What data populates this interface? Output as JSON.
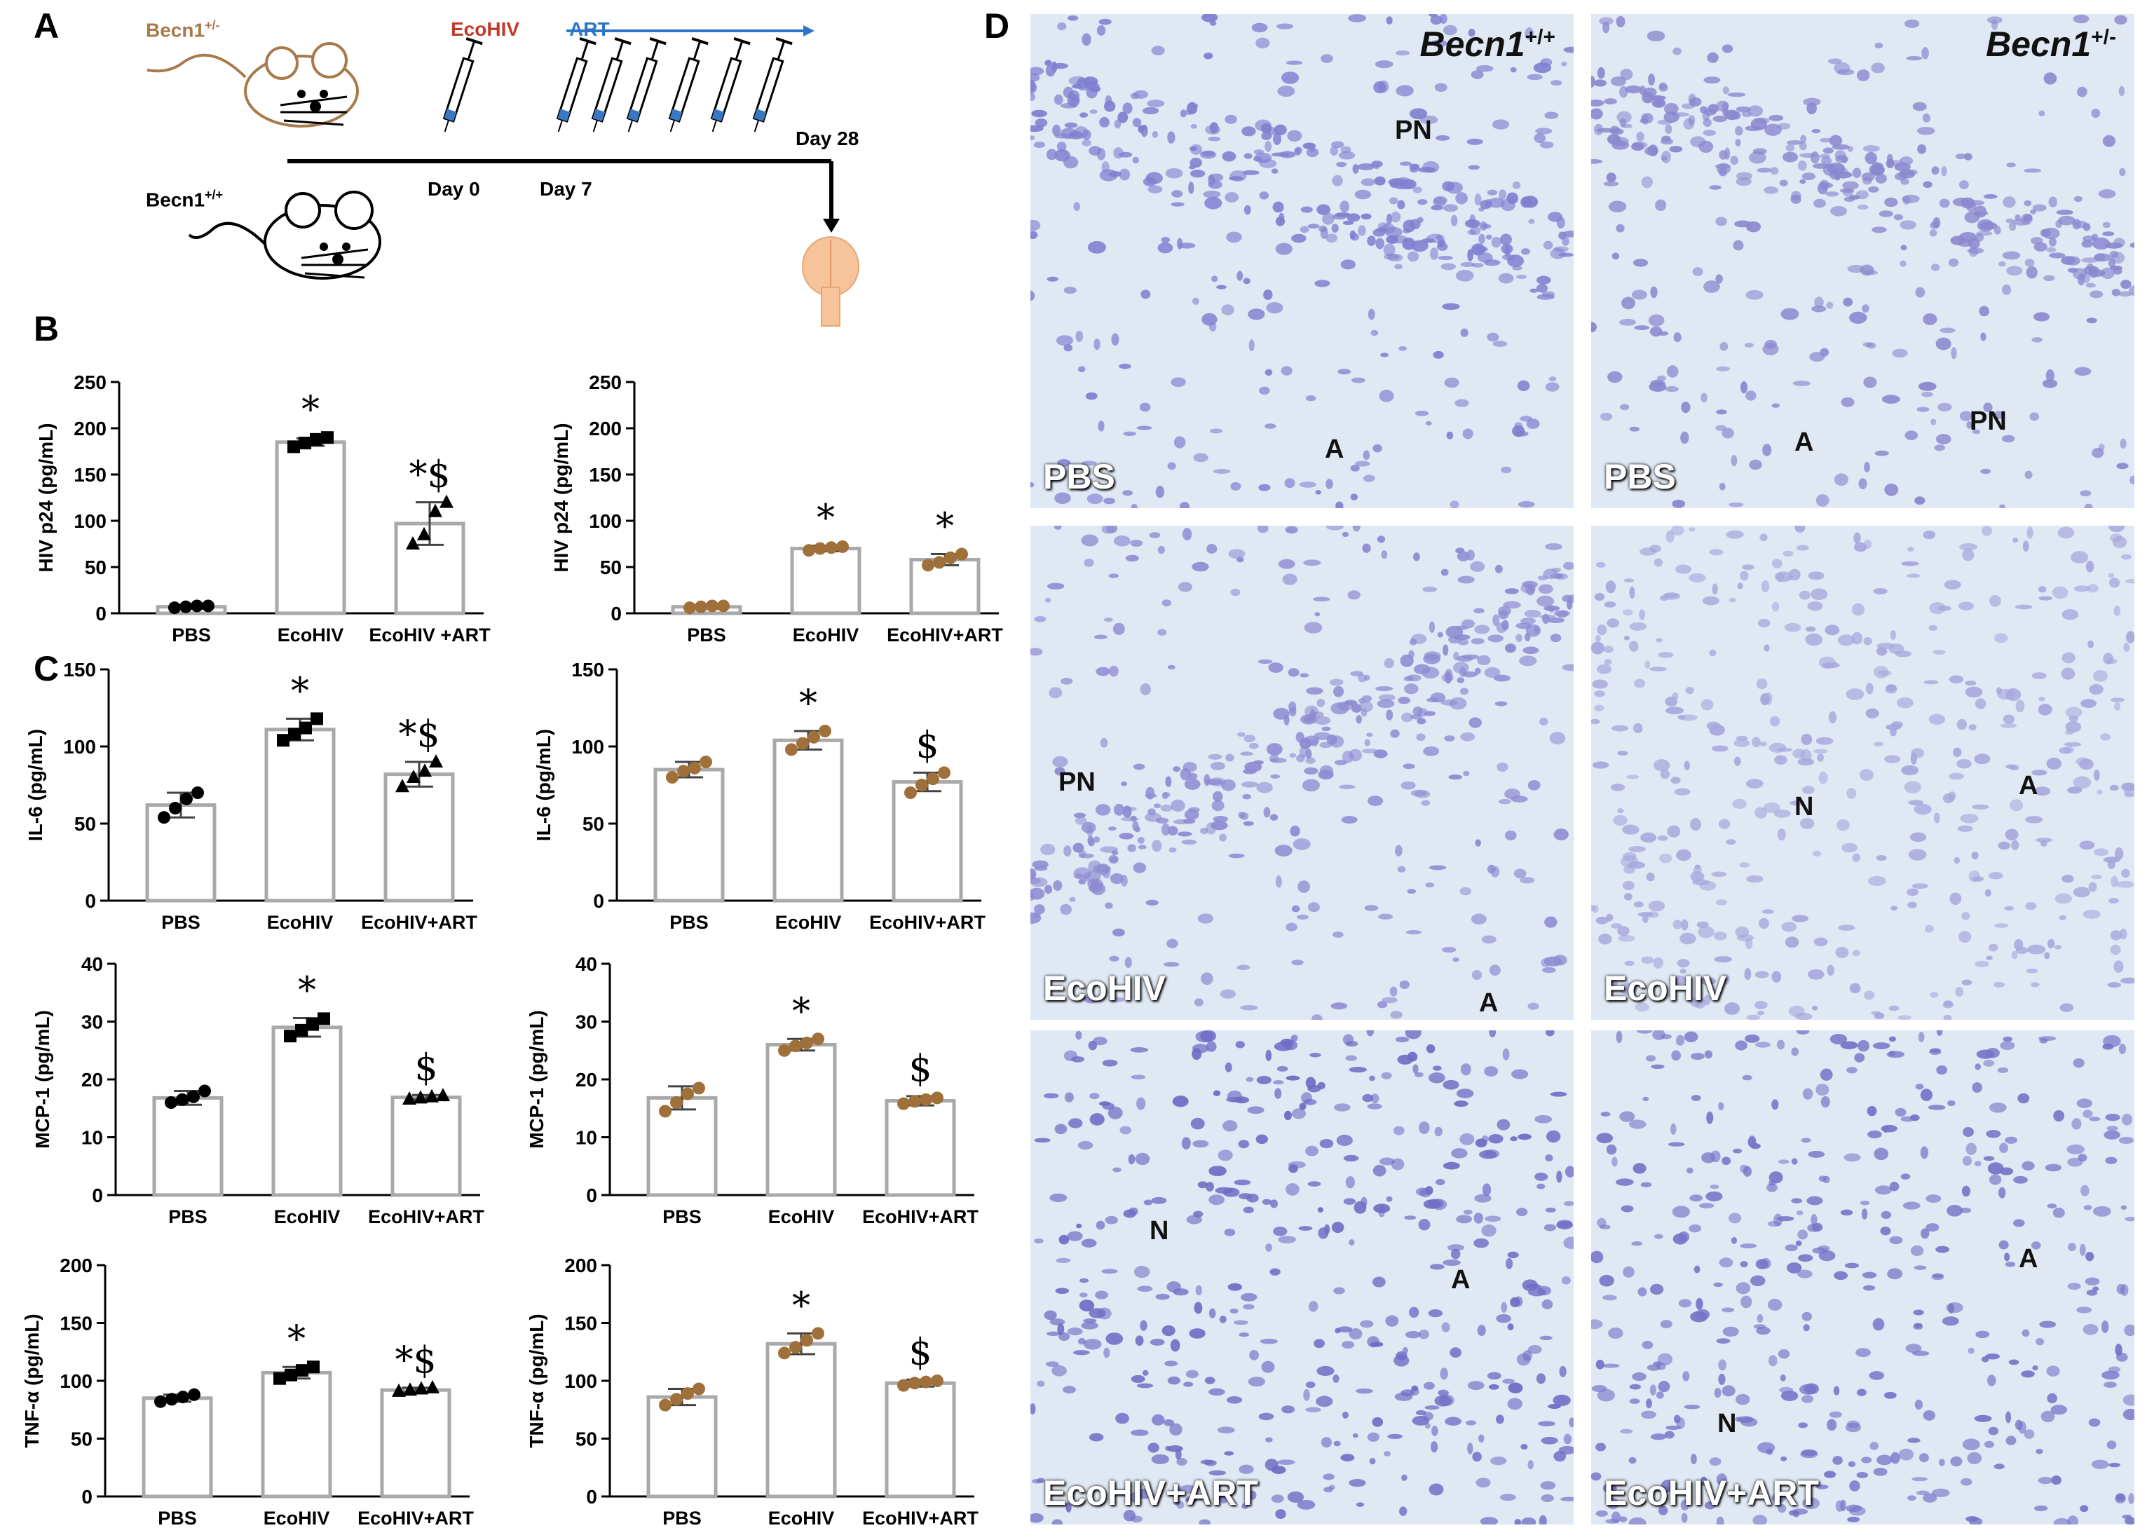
{
  "panel_labels": {
    "A": "A",
    "B": "B",
    "C": "C",
    "D": "D"
  },
  "timeline": {
    "mouse_het": "Becn1",
    "mouse_het_sup": "+/-",
    "mouse_wt": "Becn1",
    "mouse_wt_sup": "+/+",
    "ecohiv_label": "EcoHIV",
    "art_label": "ART",
    "day0": "Day 0",
    "day7": "Day 7",
    "day28": "Day 28",
    "colors": {
      "ecohiv": "#c0392b",
      "art": "#2e75c6",
      "het": "#a87a4a"
    }
  },
  "chart_data": [
    {
      "id": "p24_wt",
      "type": "bar",
      "categories": [
        "PBS",
        "EcoHIV",
        "EcoHIV +ART"
      ],
      "values": [
        7,
        185,
        97
      ],
      "errors": [
        2,
        4,
        23
      ],
      "points": [
        [
          6,
          7,
          8,
          8
        ],
        [
          180,
          184,
          188,
          190
        ],
        [
          75,
          85,
          110,
          120
        ]
      ],
      "marker": "mix",
      "color": "#000000",
      "ylabel": "HIV p24 (pg/mL)",
      "ylim": [
        0,
        250
      ],
      "ticks": [
        0,
        50,
        100,
        150,
        200,
        250
      ],
      "sig": [
        "",
        "*",
        "*$"
      ]
    },
    {
      "id": "p24_het",
      "type": "bar",
      "categories": [
        "PBS",
        "EcoHIV",
        "EcoHIV+ART"
      ],
      "values": [
        7,
        70,
        58
      ],
      "errors": [
        2,
        3,
        6
      ],
      "points": [
        [
          6,
          7,
          8,
          8
        ],
        [
          68,
          70,
          71,
          72
        ],
        [
          52,
          55,
          60,
          64
        ]
      ],
      "marker": "circle",
      "color": "#a0703a",
      "ylabel": "HIV p24 (pg/mL)",
      "ylim": [
        0,
        250
      ],
      "ticks": [
        0,
        50,
        100,
        150,
        200,
        250
      ],
      "sig": [
        "",
        "*",
        "*"
      ]
    },
    {
      "id": "il6_wt",
      "type": "bar",
      "categories": [
        "PBS",
        "EcoHIV",
        "EcoHIV+ART"
      ],
      "values": [
        62,
        111,
        82
      ],
      "errors": [
        8,
        7,
        8
      ],
      "points": [
        [
          54,
          60,
          66,
          70
        ],
        [
          104,
          108,
          112,
          118
        ],
        [
          74,
          80,
          84,
          90
        ]
      ],
      "marker": "mix",
      "color": "#000000",
      "ylabel": "IL-6 (pg/mL)",
      "ylim": [
        0,
        150
      ],
      "ticks": [
        0,
        50,
        100,
        150
      ],
      "sig": [
        "",
        "*",
        "*$"
      ]
    },
    {
      "id": "il6_het",
      "type": "bar",
      "categories": [
        "PBS",
        "EcoHIV",
        "EcoHIV+ART"
      ],
      "values": [
        85,
        104,
        77
      ],
      "errors": [
        5,
        6,
        6
      ],
      "points": [
        [
          80,
          84,
          86,
          90
        ],
        [
          98,
          102,
          106,
          110
        ],
        [
          70,
          75,
          79,
          83
        ]
      ],
      "marker": "circle",
      "color": "#a0703a",
      "ylabel": "IL-6 (pg/mL)",
      "ylim": [
        0,
        150
      ],
      "ticks": [
        0,
        50,
        100,
        150
      ],
      "sig": [
        "",
        "*",
        "$"
      ]
    },
    {
      "id": "mcp1_wt",
      "type": "bar",
      "categories": [
        "PBS",
        "EcoHIV",
        "EcoHIV+ART"
      ],
      "values": [
        16.8,
        29,
        16.9
      ],
      "errors": [
        1.2,
        1.6,
        0.4
      ],
      "points": [
        [
          16,
          16.5,
          17,
          18
        ],
        [
          27.5,
          28.5,
          29.5,
          30.5
        ],
        [
          16.6,
          16.8,
          17,
          17.2
        ]
      ],
      "marker": "mix",
      "color": "#000000",
      "ylabel": "MCP-1 (pg/mL)",
      "ylim": [
        0,
        40
      ],
      "ticks": [
        0,
        10,
        20,
        30,
        40
      ],
      "sig": [
        "",
        "*",
        "$"
      ]
    },
    {
      "id": "mcp1_het",
      "type": "bar",
      "categories": [
        "PBS",
        "EcoHIV",
        "EcoHIV+ART"
      ],
      "values": [
        16.8,
        26,
        16.3
      ],
      "errors": [
        2,
        1,
        0.8
      ],
      "points": [
        [
          14.5,
          16,
          17.5,
          18.5
        ],
        [
          25,
          25.8,
          26.3,
          27
        ],
        [
          15.8,
          16.2,
          16.5,
          16.8
        ]
      ],
      "marker": "circle",
      "color": "#a0703a",
      "ylabel": "MCP-1 (pg/mL)",
      "ylim": [
        0,
        40
      ],
      "ticks": [
        0,
        10,
        20,
        30,
        40
      ],
      "sig": [
        "",
        "*",
        "$"
      ]
    },
    {
      "id": "tnf_wt",
      "type": "bar",
      "categories": [
        "PBS",
        "EcoHIV",
        "EcoHIV+ART"
      ],
      "values": [
        85,
        107,
        92
      ],
      "errors": [
        3,
        5,
        2
      ],
      "points": [
        [
          82,
          84,
          86,
          88
        ],
        [
          102,
          105,
          109,
          112
        ],
        [
          91,
          92,
          93,
          94
        ]
      ],
      "marker": "mix",
      "color": "#000000",
      "ylabel": "TNF-α (pg/mL)",
      "ylim": [
        0,
        200
      ],
      "ticks": [
        0,
        50,
        100,
        150,
        200
      ],
      "sig": [
        "",
        "*",
        "*$"
      ]
    },
    {
      "id": "tnf_het",
      "type": "bar",
      "categories": [
        "PBS",
        "EcoHIV",
        "EcoHIV+ART"
      ],
      "values": [
        86,
        132,
        98
      ],
      "errors": [
        7,
        9,
        3
      ],
      "points": [
        [
          79,
          84,
          89,
          93
        ],
        [
          124,
          129,
          135,
          141
        ],
        [
          96,
          98,
          99,
          100
        ]
      ],
      "marker": "circle",
      "color": "#a0703a",
      "ylabel": "TNF-α (pg/mL)",
      "ylim": [
        0,
        200
      ],
      "ticks": [
        0,
        50,
        100,
        150,
        200
      ],
      "sig": [
        "",
        "*",
        "$"
      ]
    }
  ],
  "micrographs": [
    {
      "label": "PBS",
      "genotype": "Becn1",
      "genotype_sup": "+/+",
      "annotations": [
        "PN",
        "A"
      ],
      "color": "#7f7fd0"
    },
    {
      "label": "PBS",
      "genotype": "Becn1",
      "genotype_sup": "+/-",
      "annotations": [
        "PN",
        "A"
      ],
      "color": "#8a87cf"
    },
    {
      "label": "EcoHIV",
      "genotype": "",
      "genotype_sup": "",
      "annotations": [
        "PN",
        "A"
      ],
      "color": "#8d8ad2"
    },
    {
      "label": "EcoHIV",
      "genotype": "",
      "genotype_sup": "",
      "annotations": [
        "N",
        "A"
      ],
      "color": "#a6a6dc"
    },
    {
      "label": "EcoHIV+ART",
      "genotype": "",
      "genotype_sup": "",
      "annotations": [
        "N",
        "A"
      ],
      "color": "#6f6cc5"
    },
    {
      "label": "EcoHIV+ART",
      "genotype": "",
      "genotype_sup": "",
      "annotations": [
        "A",
        "N"
      ],
      "color": "#7674c8"
    }
  ]
}
